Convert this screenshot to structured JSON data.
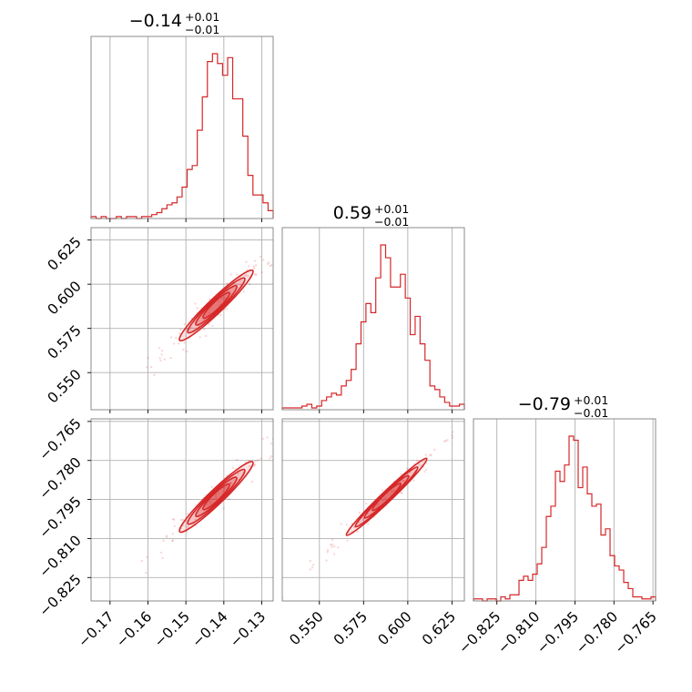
{
  "colors": {
    "series": "#d62728",
    "grid": "#b0b0b0",
    "frame": "#7f7f7f"
  },
  "chart_data": {
    "type": "corner",
    "parameters": [
      {
        "title_value": "−0.14",
        "title_plus": "+0.01",
        "title_minus": "−0.01",
        "median": -0.142,
        "range": [
          -0.175,
          -0.127
        ],
        "ticks": [
          -0.17,
          -0.16,
          -0.15,
          -0.14,
          -0.13
        ],
        "tick_labels": [
          "−0.17",
          "−0.16",
          "−0.15",
          "−0.14",
          "−0.13"
        ]
      },
      {
        "title_value": "0.59",
        "title_plus": "+0.01",
        "title_minus": "−0.01",
        "median": 0.588,
        "range": [
          0.529,
          0.632
        ],
        "ticks": [
          0.55,
          0.575,
          0.6,
          0.625
        ],
        "tick_labels": [
          "0.550",
          "0.575",
          "0.600",
          "0.625"
        ]
      },
      {
        "title_value": "−0.79",
        "title_plus": "+0.01",
        "title_minus": "−0.01",
        "median": -0.794,
        "range": [
          -0.834,
          -0.764
        ],
        "ticks": [
          -0.825,
          -0.81,
          -0.795,
          -0.78,
          -0.765
        ],
        "tick_labels": [
          "−0.825",
          "−0.810",
          "−0.795",
          "−0.780",
          "−0.765"
        ]
      }
    ],
    "histograms": [
      {
        "param": 0,
        "heights": [
          1,
          0,
          1,
          0,
          0,
          1,
          0,
          1,
          1,
          0,
          1,
          1,
          2,
          3,
          5,
          7,
          8,
          11,
          16,
          25,
          27,
          45,
          62,
          80,
          84,
          79,
          73,
          82,
          61,
          61,
          42,
          22,
          12,
          12,
          8,
          4
        ]
      },
      {
        "param": 1,
        "heights": [
          1,
          1,
          1,
          1,
          2,
          3,
          1,
          2,
          5,
          7,
          9,
          8,
          13,
          16,
          22,
          36,
          48,
          58,
          53,
          72,
          90,
          83,
          67,
          67,
          74,
          61,
          41,
          51,
          36,
          27,
          13,
          11,
          7,
          4,
          2,
          2,
          3
        ]
      },
      {
        "param": 2,
        "heights": [
          1,
          1,
          0,
          1,
          1,
          0,
          2,
          1,
          3,
          3,
          10,
          12,
          10,
          13,
          18,
          26,
          41,
          46,
          63,
          58,
          66,
          80,
          78,
          55,
          65,
          52,
          46,
          47,
          32,
          35,
          22,
          17,
          15,
          9,
          6,
          2,
          2,
          1,
          1,
          2
        ]
      }
    ],
    "scatter_2d": [
      {
        "x_param": 0,
        "y_param": 1,
        "correlation": "strong positive"
      },
      {
        "x_param": 0,
        "y_param": 2,
        "correlation": "strong positive"
      },
      {
        "x_param": 1,
        "y_param": 2,
        "correlation": "strong positive"
      }
    ],
    "grid": true
  }
}
